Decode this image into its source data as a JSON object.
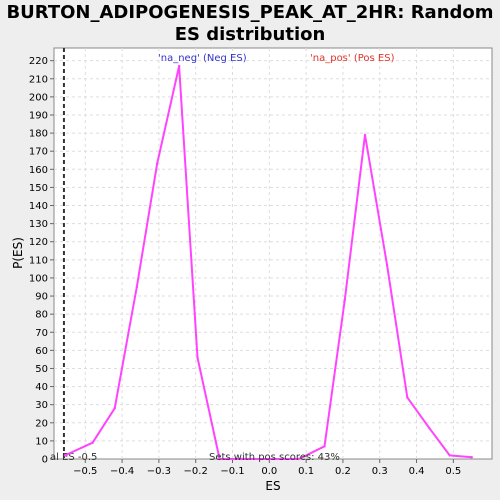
{
  "chart_data": {
    "type": "line",
    "title": "BURTON_ADIPOGENESIS_PEAK_AT_2HR: Random ES distribution",
    "xlabel": "ES",
    "ylabel": "P(ES)",
    "xlim": [
      -0.585,
      0.605
    ],
    "ylim": [
      0,
      227
    ],
    "xticks": [
      -0.5,
      -0.4,
      -0.3,
      -0.2,
      -0.1,
      0.0,
      0.1,
      0.2,
      0.3,
      0.4,
      0.5
    ],
    "xtick_labels": [
      "−0.5",
      "−0.4",
      "−0.3",
      "−0.2",
      "−0.1",
      "0.0",
      "0.1",
      "0.2",
      "0.3",
      "0.4",
      "0.5"
    ],
    "yticks": [
      0,
      10,
      20,
      30,
      40,
      50,
      60,
      70,
      80,
      90,
      100,
      110,
      120,
      130,
      140,
      150,
      160,
      170,
      180,
      190,
      200,
      210,
      220
    ],
    "grid": true,
    "series": [
      {
        "name": "",
        "color": "#ff44ff",
        "x": [
          -0.555,
          -0.48,
          -0.42,
          -0.36,
          -0.305,
          -0.245,
          -0.195,
          -0.135,
          -0.075,
          0.0,
          0.08,
          0.15,
          0.205,
          0.26,
          0.32,
          0.375,
          0.435,
          0.49,
          0.55
        ],
        "y": [
          2,
          9,
          28,
          95,
          163,
          217,
          56,
          0,
          0,
          0,
          0,
          7,
          88,
          179,
          107,
          34,
          17,
          2,
          1
        ]
      }
    ],
    "legend": [
      {
        "label": "'na_neg' (Neg ES)",
        "color": "#3333cc"
      },
      {
        "label": "'na_pos' (Pos ES)",
        "color": "#e0332b"
      }
    ],
    "reference_line": {
      "x": -0.558,
      "style": "dashed",
      "label": "al ES -0.5"
    },
    "annotation": "Sets with pos scores: 43%"
  }
}
